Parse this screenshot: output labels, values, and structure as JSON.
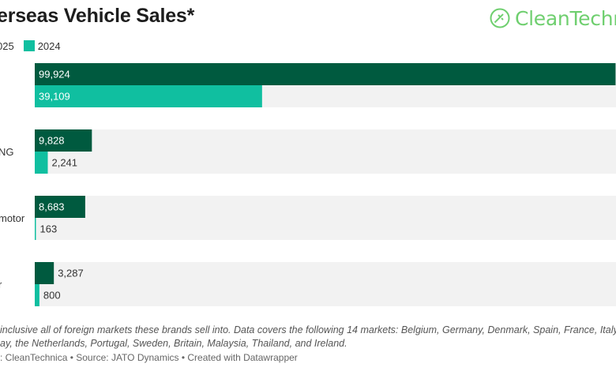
{
  "title": "erseas Vehicle Sales*",
  "legend": {
    "items": [
      {
        "label": "025"
      },
      {
        "label": "2024"
      }
    ]
  },
  "logo": {
    "text": "CleanTechnic"
  },
  "colors": {
    "series_2025": "#005a3f",
    "series_2024": "#10bfa0",
    "track": "#f2f2f2"
  },
  "note": {
    "line1": "inclusive all of foreign markets these brands sell into. Data covers the following 14 markets: Belgium, Germany, Denmark, Spain, France, Italy,",
    "line2": "ay, the Netherlands, Portugal, Sweden, Britain, Malaysia, Thailand, and Ireland."
  },
  "credits": ": CleanTechnica • Source: JATO Dynamics • Created with Datawrapper",
  "chart_data": {
    "type": "bar",
    "orientation": "horizontal",
    "title": "erseas Vehicle Sales*",
    "categories": [
      "",
      "NG",
      "motor",
      "r"
    ],
    "series": [
      {
        "name": "025",
        "values": [
          99924,
          9828,
          8683,
          3287
        ]
      },
      {
        "name": "2024",
        "values": [
          39109,
          2241,
          163,
          800
        ]
      }
    ],
    "value_labels": [
      [
        "99,924",
        "9,828",
        "8,683",
        "3,287"
      ],
      [
        "39,109",
        "2,241",
        "163",
        "800"
      ]
    ],
    "xlim": [
      0,
      100000
    ],
    "grid": false,
    "legend_position": "top-left"
  }
}
